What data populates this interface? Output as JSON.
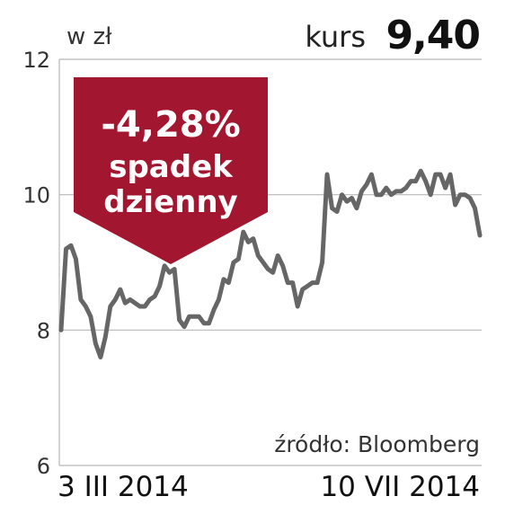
{
  "header": {
    "unit": "w zł",
    "kurs_label": "kurs",
    "kurs_value": "9,40"
  },
  "badge": {
    "change": "-4,28%",
    "line1": "spadek",
    "line2": "dzienny",
    "color": "#a3162f"
  },
  "source": "źródło: Bloomberg",
  "chart_data": {
    "type": "line",
    "title": "",
    "xlabel": "",
    "ylabel": "w zł",
    "ylim": [
      6,
      12
    ],
    "yticks": [
      "12",
      "10",
      "8",
      "6"
    ],
    "xtick_labels": [
      "3 III 2014",
      "10 VII 2014"
    ],
    "grid": true,
    "line_color": "#666666",
    "series": [
      {
        "values": [
          8.0,
          9.2,
          9.25,
          9.05,
          8.45,
          8.35,
          8.2,
          7.8,
          7.6,
          7.9,
          8.35,
          8.45,
          8.6,
          8.4,
          8.45,
          8.4,
          8.35,
          8.35,
          8.45,
          8.5,
          8.65,
          8.95,
          8.85,
          8.9,
          8.15,
          8.05,
          8.2,
          8.2,
          8.2,
          8.1,
          8.1,
          8.3,
          8.45,
          8.75,
          8.7,
          9.0,
          9.05,
          9.45,
          9.3,
          9.35,
          9.1,
          9.0,
          8.9,
          8.85,
          9.1,
          8.95,
          8.7,
          8.7,
          8.35,
          8.6,
          8.65,
          8.7,
          8.7,
          9.0,
          10.3,
          9.8,
          9.75,
          10.0,
          9.9,
          9.95,
          9.8,
          10.05,
          10.15,
          10.3,
          10.0,
          10.0,
          10.1,
          10.0,
          10.05,
          10.05,
          10.1,
          10.2,
          10.2,
          10.35,
          10.2,
          10.0,
          10.3,
          10.3,
          10.1,
          10.3,
          9.85,
          10.0,
          10.0,
          9.95,
          9.8,
          9.4
        ]
      }
    ]
  }
}
